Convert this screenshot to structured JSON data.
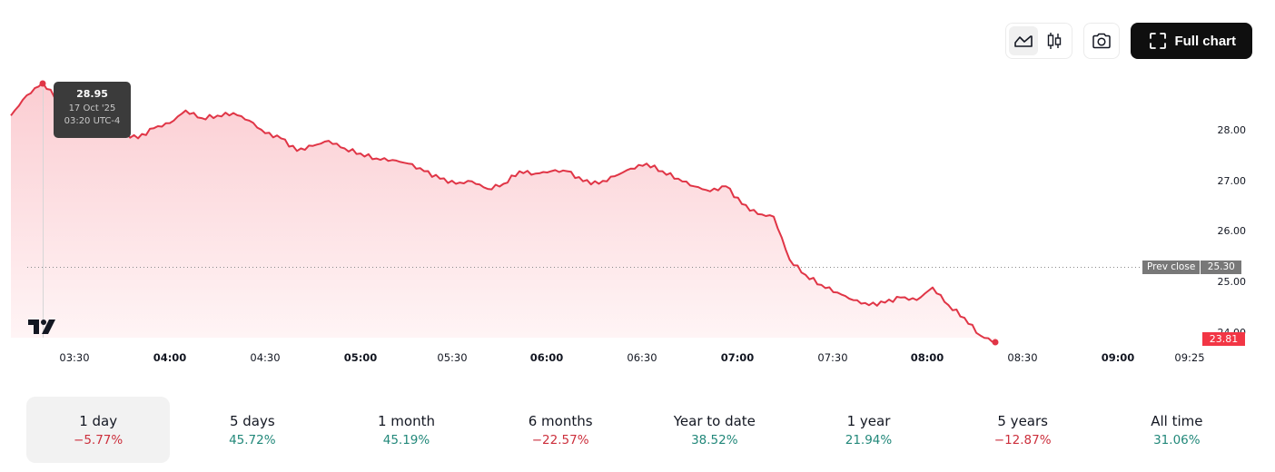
{
  "toolbar": {
    "chart_type_buttons": [
      {
        "icon": "area-chart-icon",
        "active": true
      },
      {
        "icon": "candlestick-icon",
        "active": false
      }
    ],
    "snapshot_icon": "camera-icon",
    "full_chart_label": "Full chart",
    "full_chart_icon": "fullscreen-icon"
  },
  "tooltip": {
    "value": "28.95",
    "date": "17 Oct '25",
    "time": "03:20 UTC-4"
  },
  "price_scale": {
    "labels": [
      "28.00",
      "27.00",
      "26.00",
      "25.00",
      "24.00"
    ],
    "prev_close_label": "Prev close",
    "prev_close_value": "25.30",
    "last_price": "23.81"
  },
  "time_scale": {
    "labels": [
      {
        "text": "03:30",
        "major": false
      },
      {
        "text": "04:00",
        "major": true
      },
      {
        "text": "04:30",
        "major": false
      },
      {
        "text": "05:00",
        "major": true
      },
      {
        "text": "05:30",
        "major": false
      },
      {
        "text": "06:00",
        "major": true
      },
      {
        "text": "06:30",
        "major": false
      },
      {
        "text": "07:00",
        "major": true
      },
      {
        "text": "07:30",
        "major": false
      },
      {
        "text": "08:00",
        "major": true
      },
      {
        "text": "08:30",
        "major": false
      },
      {
        "text": "09:00",
        "major": true
      },
      {
        "text": "09:25",
        "major": false
      }
    ]
  },
  "periods": [
    {
      "label": "1 day",
      "change": "−5.77%",
      "direction": "neg",
      "active": true
    },
    {
      "label": "5 days",
      "change": "45.72%",
      "direction": "pos",
      "active": false
    },
    {
      "label": "1 month",
      "change": "45.19%",
      "direction": "pos",
      "active": false
    },
    {
      "label": "6 months",
      "change": "−22.57%",
      "direction": "neg",
      "active": false
    },
    {
      "label": "Year to date",
      "change": "38.52%",
      "direction": "pos",
      "active": false
    },
    {
      "label": "1 year",
      "change": "21.94%",
      "direction": "pos",
      "active": false
    },
    {
      "label": "5 years",
      "change": "−12.87%",
      "direction": "neg",
      "active": false
    },
    {
      "label": "All time",
      "change": "31.06%",
      "direction": "pos",
      "active": false
    }
  ],
  "colors": {
    "line": "#e03546",
    "area_top": "#fbd0d4",
    "area_bottom": "#fff4f5",
    "last_price_bg": "#f23645",
    "prev_close_bg": "#787878",
    "negative": "#cc2f3c",
    "positive": "#22887a"
  },
  "chart_data": {
    "type": "area",
    "title": "",
    "xlabel": "",
    "ylabel": "",
    "ylim": [
      23.7,
      29.0
    ],
    "x_range": [
      "03:10",
      "09:25"
    ],
    "prev_close": 25.3,
    "last_price": 23.81,
    "highlight": {
      "x": "03:20",
      "y": 28.95,
      "date": "17 Oct '25"
    },
    "x": [
      "03:10",
      "03:15",
      "03:20",
      "03:25",
      "03:30",
      "03:35",
      "03:40",
      "03:45",
      "03:50",
      "03:55",
      "04:00",
      "04:05",
      "04:10",
      "04:15",
      "04:20",
      "04:25",
      "04:30",
      "04:35",
      "04:40",
      "04:45",
      "04:50",
      "04:55",
      "05:00",
      "05:05",
      "05:10",
      "05:15",
      "05:20",
      "05:25",
      "05:30",
      "05:35",
      "05:40",
      "05:45",
      "05:50",
      "05:55",
      "06:00",
      "06:05",
      "06:10",
      "06:15",
      "06:20",
      "06:25",
      "06:30",
      "06:35",
      "06:40",
      "06:45",
      "06:50",
      "06:55",
      "07:00",
      "07:05",
      "07:10",
      "07:15",
      "07:20",
      "07:25",
      "07:30",
      "07:35",
      "07:40",
      "07:45",
      "07:50",
      "07:55",
      "08:00",
      "08:05",
      "08:10",
      "08:15",
      "08:20"
    ],
    "values": [
      28.3,
      28.7,
      28.95,
      28.6,
      28.3,
      28.15,
      28.1,
      27.95,
      27.85,
      28.05,
      28.15,
      28.4,
      28.25,
      28.3,
      28.35,
      28.2,
      27.95,
      27.85,
      27.6,
      27.7,
      27.8,
      27.65,
      27.55,
      27.45,
      27.42,
      27.35,
      27.2,
      27.05,
      26.95,
      27.0,
      26.85,
      26.95,
      27.2,
      27.15,
      27.2,
      27.2,
      27.0,
      26.95,
      27.1,
      27.25,
      27.35,
      27.2,
      27.05,
      26.9,
      26.8,
      26.9,
      26.55,
      26.35,
      26.3,
      25.45,
      25.15,
      24.95,
      24.8,
      24.65,
      24.55,
      24.6,
      24.7,
      24.65,
      24.9,
      24.55,
      24.3,
      23.95,
      23.81
    ]
  }
}
